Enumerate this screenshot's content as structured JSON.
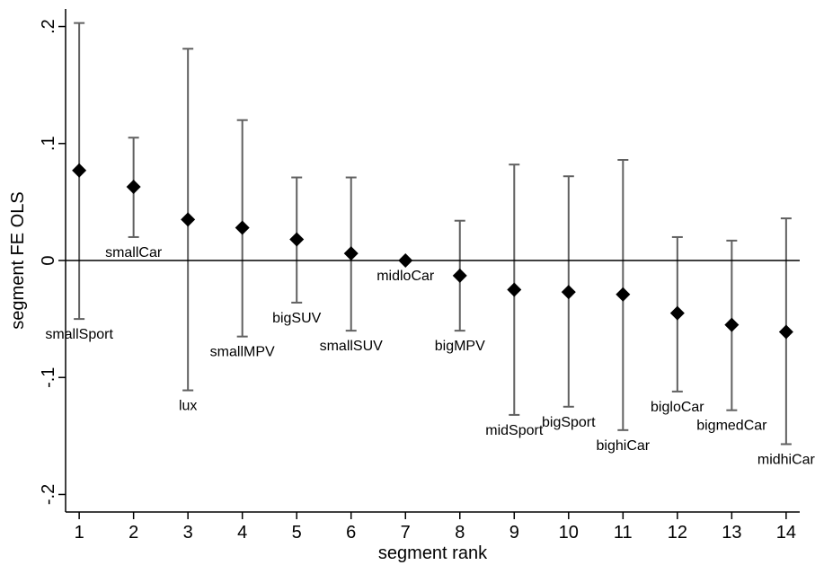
{
  "chart_data": {
    "type": "scatter",
    "title": "",
    "xlabel": "segment rank",
    "ylabel": "segment FE OLS",
    "xlim": [
      0.75,
      14.25
    ],
    "ylim": [
      -0.215,
      0.215
    ],
    "grid": false,
    "legend": "none",
    "reference_line_y": 0,
    "x_ticks": [
      1,
      2,
      3,
      4,
      5,
      6,
      7,
      8,
      9,
      10,
      11,
      12,
      13,
      14
    ],
    "y_ticks": [
      {
        "value": 0.2,
        "label": ".2"
      },
      {
        "value": 0.1,
        "label": ".1"
      },
      {
        "value": 0,
        "label": "0"
      },
      {
        "value": -0.1,
        "label": "-.1"
      },
      {
        "value": -0.2,
        "label": "-.2"
      }
    ],
    "points": [
      {
        "x": 1,
        "y": 0.077,
        "lower": -0.05,
        "upper": 0.203,
        "label": "smallSport"
      },
      {
        "x": 2,
        "y": 0.063,
        "lower": 0.02,
        "upper": 0.105,
        "label": "smallCar"
      },
      {
        "x": 3,
        "y": 0.035,
        "lower": -0.111,
        "upper": 0.181,
        "label": "lux"
      },
      {
        "x": 4,
        "y": 0.028,
        "lower": -0.065,
        "upper": 0.12,
        "label": "smallMPV"
      },
      {
        "x": 5,
        "y": 0.018,
        "lower": -0.036,
        "upper": 0.071,
        "label": "bigSUV"
      },
      {
        "x": 6,
        "y": 0.006,
        "lower": -0.06,
        "upper": 0.071,
        "label": "smallSUV"
      },
      {
        "x": 7,
        "y": 0.0,
        "lower": 0.0,
        "upper": 0.0,
        "label": "midloCar"
      },
      {
        "x": 8,
        "y": -0.013,
        "lower": -0.06,
        "upper": 0.034,
        "label": "bigMPV"
      },
      {
        "x": 9,
        "y": -0.025,
        "lower": -0.132,
        "upper": 0.082,
        "label": "midSport"
      },
      {
        "x": 10,
        "y": -0.027,
        "lower": -0.125,
        "upper": 0.072,
        "label": "bigSport"
      },
      {
        "x": 11,
        "y": -0.029,
        "lower": -0.145,
        "upper": 0.086,
        "label": "bighiCar"
      },
      {
        "x": 12,
        "y": -0.045,
        "lower": -0.112,
        "upper": 0.02,
        "label": "bigloCar"
      },
      {
        "x": 13,
        "y": -0.055,
        "lower": -0.128,
        "upper": 0.017,
        "label": "bigmedCar"
      },
      {
        "x": 14,
        "y": -0.061,
        "lower": -0.157,
        "upper": 0.036,
        "label": "midhiCar"
      }
    ],
    "colors": {
      "marker": "#000000",
      "error_bar": "#606060",
      "reference_line": "#000000",
      "axis": "#000000"
    }
  }
}
